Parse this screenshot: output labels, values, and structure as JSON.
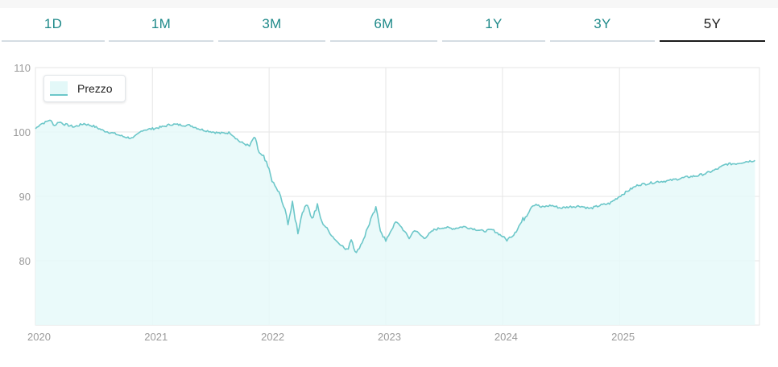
{
  "tabs": [
    {
      "label": "1D",
      "active": false
    },
    {
      "label": "1M",
      "active": false
    },
    {
      "label": "3M",
      "active": false
    },
    {
      "label": "6M",
      "active": false
    },
    {
      "label": "1Y",
      "active": false
    },
    {
      "label": "3Y",
      "active": false
    },
    {
      "label": "5Y",
      "active": true
    }
  ],
  "colors": {
    "line": "#6cc7c9",
    "fill": "#e6f9f9",
    "tab_text": "#1f8a8a",
    "active_tab": "#1a1a1a",
    "grid": "#e6e6e6",
    "axis_label": "#9a9a9a"
  },
  "chart_data": {
    "type": "area",
    "series": [
      {
        "name": "Prezzo",
        "points": [
          [
            "2020-01-01",
            100.5
          ],
          [
            "2020-01-15",
            101.2
          ],
          [
            "2020-02-01",
            101.5
          ],
          [
            "2020-02-15",
            101.9
          ],
          [
            "2020-03-01",
            101.0
          ],
          [
            "2020-03-15",
            101.6
          ],
          [
            "2020-04-01",
            101.2
          ],
          [
            "2020-05-01",
            100.8
          ],
          [
            "2020-06-01",
            101.3
          ],
          [
            "2020-07-01",
            100.9
          ],
          [
            "2020-08-01",
            100.2
          ],
          [
            "2020-09-01",
            99.8
          ],
          [
            "2020-10-01",
            99.3
          ],
          [
            "2020-11-01",
            99.0
          ],
          [
            "2020-12-01",
            100.3
          ],
          [
            "2021-01-01",
            100.5
          ],
          [
            "2021-02-01",
            100.8
          ],
          [
            "2021-03-01",
            101.2
          ],
          [
            "2021-04-01",
            101.1
          ],
          [
            "2021-05-01",
            101.0
          ],
          [
            "2021-06-01",
            100.4
          ],
          [
            "2021-07-01",
            100.1
          ],
          [
            "2021-08-01",
            99.8
          ],
          [
            "2021-09-01",
            99.9
          ],
          [
            "2021-10-01",
            98.5
          ],
          [
            "2021-11-01",
            97.8
          ],
          [
            "2021-11-15",
            99.2
          ],
          [
            "2021-12-01",
            96.8
          ],
          [
            "2021-12-15",
            96.0
          ],
          [
            "2022-01-01",
            94.0
          ],
          [
            "2022-01-15",
            92.0
          ],
          [
            "2022-02-01",
            90.5
          ],
          [
            "2022-02-15",
            88.5
          ],
          [
            "2022-03-01",
            86.0
          ],
          [
            "2022-03-15",
            88.8
          ],
          [
            "2022-04-01",
            84.5
          ],
          [
            "2022-04-15",
            87.5
          ],
          [
            "2022-05-01",
            89.0
          ],
          [
            "2022-05-15",
            86.5
          ],
          [
            "2022-06-01",
            88.5
          ],
          [
            "2022-06-15",
            86.0
          ],
          [
            "2022-07-01",
            85.0
          ],
          [
            "2022-07-15",
            84.0
          ],
          [
            "2022-08-01",
            83.0
          ],
          [
            "2022-08-15",
            82.5
          ],
          [
            "2022-09-01",
            81.5
          ],
          [
            "2022-09-15",
            83.5
          ],
          [
            "2022-10-01",
            81.2
          ],
          [
            "2022-10-15",
            82.5
          ],
          [
            "2022-11-01",
            84.5
          ],
          [
            "2022-11-15",
            86.5
          ],
          [
            "2022-12-01",
            88.0
          ],
          [
            "2022-12-15",
            85.0
          ],
          [
            "2023-01-01",
            83.0
          ],
          [
            "2023-01-15",
            84.5
          ],
          [
            "2023-02-01",
            86.0
          ],
          [
            "2023-02-15",
            85.5
          ],
          [
            "2023-03-01",
            84.5
          ],
          [
            "2023-03-15",
            83.5
          ],
          [
            "2023-04-01",
            84.8
          ],
          [
            "2023-05-01",
            83.5
          ],
          [
            "2023-06-01",
            84.8
          ],
          [
            "2023-07-01",
            85.2
          ],
          [
            "2023-08-01",
            85.0
          ],
          [
            "2023-09-01",
            85.3
          ],
          [
            "2023-10-01",
            85.0
          ],
          [
            "2023-11-01",
            84.6
          ],
          [
            "2023-12-01",
            84.8
          ],
          [
            "2024-01-01",
            83.8
          ],
          [
            "2024-01-15",
            83.2
          ],
          [
            "2024-02-01",
            84.0
          ],
          [
            "2024-03-01",
            86.0
          ],
          [
            "2024-04-01",
            88.5
          ],
          [
            "2024-04-15",
            88.8
          ],
          [
            "2024-05-01",
            88.3
          ],
          [
            "2024-06-01",
            88.6
          ],
          [
            "2024-07-01",
            88.2
          ],
          [
            "2024-08-01",
            88.4
          ],
          [
            "2024-09-01",
            88.5
          ],
          [
            "2024-10-01",
            88.1
          ],
          [
            "2024-11-01",
            88.6
          ],
          [
            "2024-12-01",
            88.9
          ],
          [
            "2025-01-01",
            90.0
          ],
          [
            "2025-02-01",
            91.0
          ],
          [
            "2025-03-01",
            91.8
          ],
          [
            "2025-04-01",
            92.0
          ],
          [
            "2025-05-01",
            92.3
          ],
          [
            "2025-06-01",
            92.4
          ],
          [
            "2025-07-01",
            92.7
          ],
          [
            "2025-08-01",
            93.0
          ],
          [
            "2025-09-01",
            93.2
          ],
          [
            "2025-10-01",
            93.6
          ],
          [
            "2025-11-01",
            94.2
          ],
          [
            "2025-12-01",
            95.0
          ],
          [
            "2026-01-01",
            95.1
          ],
          [
            "2026-02-01",
            95.4
          ],
          [
            "2026-03-01",
            95.6
          ]
        ]
      }
    ],
    "ylim": [
      70,
      110
    ],
    "yticks": [
      80,
      90,
      100,
      110
    ],
    "xlim": [
      "2020-01-01",
      "2026-03-15"
    ],
    "xticks": [
      {
        "label": "2020",
        "date": "2020-01-01"
      },
      {
        "label": "2021",
        "date": "2021-01-01"
      },
      {
        "label": "2022",
        "date": "2022-01-01"
      },
      {
        "label": "2023",
        "date": "2023-01-01"
      },
      {
        "label": "2024",
        "date": "2024-01-01"
      },
      {
        "label": "2025",
        "date": "2025-01-01"
      }
    ],
    "grid": true,
    "legend": {
      "position": "top-left",
      "label": "Prezzo"
    }
  }
}
